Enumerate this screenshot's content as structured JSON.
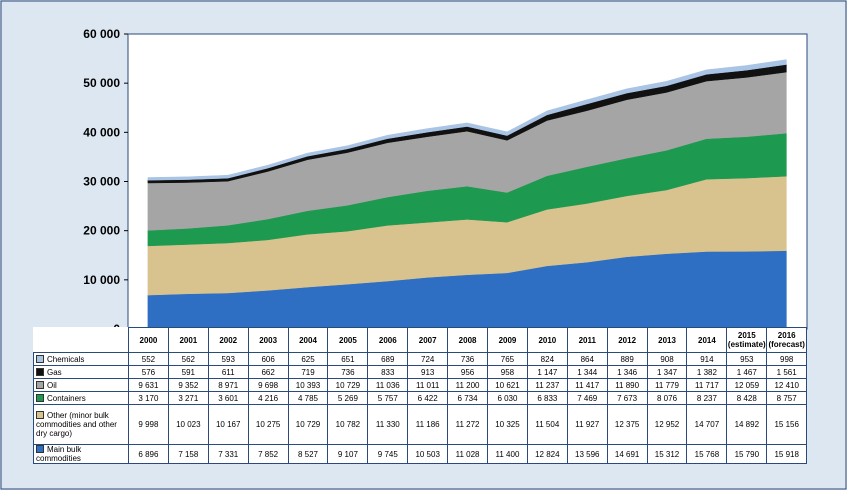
{
  "chart_data": {
    "type": "area",
    "stacked": true,
    "ylim": [
      0,
      60000
    ],
    "yticks": [
      0,
      10000,
      20000,
      30000,
      40000,
      50000,
      60000
    ],
    "ytick_labels": [
      "0",
      "10 000",
      "20 000",
      "30 000",
      "40 000",
      "50 000",
      "60 000"
    ],
    "grid": false,
    "legend": "table-left",
    "x": [
      "2000",
      "2001",
      "2002",
      "2003",
      "2004",
      "2005",
      "2006",
      "2007",
      "2008",
      "2009",
      "2010",
      "2011",
      "2012",
      "2013",
      "2014",
      "2015 (estimate)",
      "2016 (forecast)"
    ],
    "series": [
      {
        "name": "Main bulk commodities",
        "color": "#2e6fc4",
        "values": [
          6896,
          7158,
          7331,
          7852,
          8527,
          9107,
          9745,
          10503,
          11028,
          11400,
          12824,
          13596,
          14691,
          15312,
          15768,
          15790,
          15918
        ],
        "labels": [
          "6 896",
          "7 158",
          "7 331",
          "7 852",
          "8 527",
          "9 107",
          "9 745",
          "10 503",
          "11 028",
          "11 400",
          "12 824",
          "13 596",
          "14 691",
          "15 312",
          "15 768",
          "15 790",
          "15 918"
        ]
      },
      {
        "name": "Other (minor bulk commodities and other dry cargo)",
        "color": "#d8c38f",
        "values": [
          9998,
          10023,
          10167,
          10275,
          10729,
          10782,
          11330,
          11186,
          11272,
          10325,
          11504,
          11927,
          12375,
          12952,
          14707,
          14892,
          15156
        ],
        "labels": [
          "9 998",
          "10 023",
          "10 167",
          "10 275",
          "10 729",
          "10 782",
          "11 330",
          "11 186",
          "11 272",
          "10 325",
          "11 504",
          "11 927",
          "12 375",
          "12 952",
          "14 707",
          "14 892",
          "15 156"
        ]
      },
      {
        "name": "Containers",
        "color": "#1e9950",
        "values": [
          3170,
          3271,
          3601,
          4216,
          4785,
          5269,
          5757,
          6422,
          6734,
          6030,
          6833,
          7469,
          7673,
          8076,
          8237,
          8428,
          8757
        ],
        "labels": [
          "3 170",
          "3 271",
          "3 601",
          "4 216",
          "4 785",
          "5 269",
          "5 757",
          "6 422",
          "6 734",
          "6 030",
          "6 833",
          "7 469",
          "7 673",
          "8 076",
          "8 237",
          "8 428",
          "8 757"
        ]
      },
      {
        "name": "Oil",
        "color": "#a5a5a5",
        "values": [
          9631,
          9352,
          8971,
          9698,
          10393,
          10729,
          11036,
          11011,
          11200,
          10621,
          11237,
          11417,
          11890,
          11779,
          11717,
          12059,
          12410
        ],
        "labels": [
          "9 631",
          "9 352",
          "8 971",
          "9 698",
          "10 393",
          "10 729",
          "11 036",
          "11 011",
          "11 200",
          "10 621",
          "11 237",
          "11 417",
          "11 890",
          "11 779",
          "11 717",
          "12 059",
          "12 410"
        ]
      },
      {
        "name": "Gas",
        "color": "#111111",
        "values": [
          576,
          591,
          611,
          662,
          719,
          736,
          833,
          913,
          956,
          958,
          1147,
          1344,
          1346,
          1347,
          1382,
          1467,
          1561
        ],
        "labels": [
          "576",
          "591",
          "611",
          "662",
          "719",
          "736",
          "833",
          "913",
          "956",
          "958",
          "1 147",
          "1 344",
          "1 346",
          "1 347",
          "1 382",
          "1 467",
          "1 561"
        ]
      },
      {
        "name": "Chemicals",
        "color": "#a9c4e4",
        "values": [
          552,
          562,
          593,
          606,
          625,
          651,
          689,
          724,
          736,
          765,
          824,
          864,
          889,
          908,
          914,
          953,
          998
        ],
        "labels": [
          "552",
          "562",
          "593",
          "606",
          "625",
          "651",
          "689",
          "724",
          "736",
          "765",
          "824",
          "864",
          "889",
          "908",
          "914",
          "953",
          "998"
        ]
      }
    ]
  },
  "table": {
    "header": [
      "2000",
      "2001",
      "2002",
      "2003",
      "2004",
      "2005",
      "2006",
      "2007",
      "2008",
      "2009",
      "2010",
      "2011",
      "2012",
      "2013",
      "2014",
      "2015 (estimate)",
      "2016 (forecast)"
    ],
    "row_order": [
      5,
      4,
      3,
      2,
      1,
      0
    ],
    "row_labels": [
      "Chemicals",
      "Gas",
      "Oil",
      "Containers",
      "Other (minor bulk commodities and other dry cargo)",
      "Main bulk commodities"
    ]
  }
}
